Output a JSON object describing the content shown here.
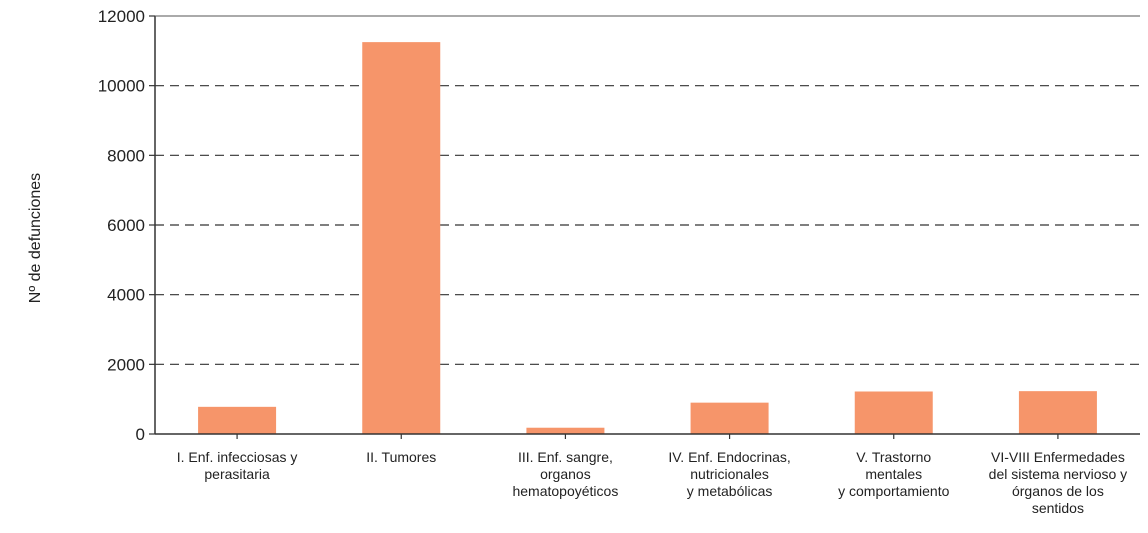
{
  "chart_data": {
    "type": "bar",
    "ylabel": "Nº de defunciones",
    "xlabel": "",
    "ylim": [
      0,
      12000
    ],
    "yticks": [
      0,
      2000,
      4000,
      6000,
      8000,
      10000,
      12000
    ],
    "grid": "horizontal dashed",
    "categories": [
      [
        "I. Enf. infecciosas y",
        "perasitaria"
      ],
      [
        "II. Tumores"
      ],
      [
        "III. Enf. sangre,",
        "organos",
        "hematopoyéticos"
      ],
      [
        "IV. Enf. Endocrinas,",
        "nutricionales",
        "y metabólicas"
      ],
      [
        "V. Trastorno",
        "mentales",
        "y comportamiento"
      ],
      [
        "VI-VIII Enfermedades",
        "del sistema nervioso y",
        "órganos de los",
        "sentidos"
      ]
    ],
    "values": [
      780,
      11250,
      180,
      900,
      1220,
      1230
    ],
    "bar_color": "#f6956a"
  }
}
